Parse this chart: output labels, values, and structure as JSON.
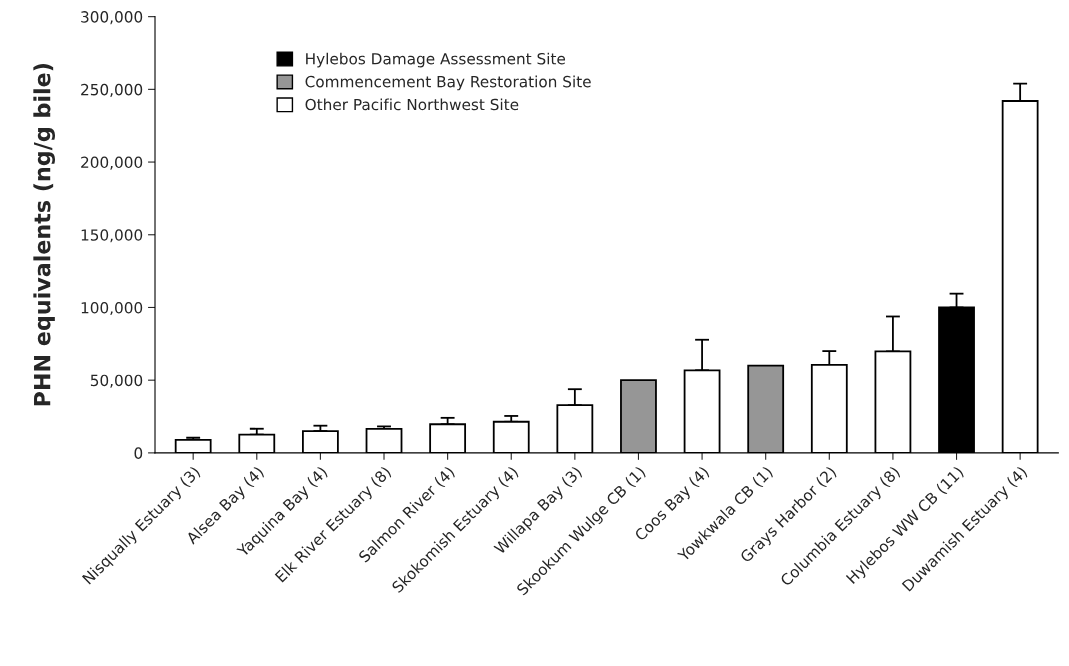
{
  "chart_data": {
    "type": "bar",
    "ylabel": "PHN equivalents (ng/g bile)",
    "categories": [
      "Nisqually Estuary (3)",
      "Alsea Bay (4)",
      "Yaquina Bay (4)",
      "Elk River Estuary (8)",
      "Salmon River (4)",
      "Skokomish Estuary (4)",
      "Willapa Bay (3)",
      "Skookum Wulge CB (1)",
      "Coos Bay (4)",
      "Yowkwala CB (1)",
      "Grays Harbor (2)",
      "Columbia Estuary (8)",
      "Hylebos WW CB (11)",
      "Duwamish Estuary (4)"
    ],
    "series": [
      {
        "name": "Hylebos Damage Assessment Site",
        "color": "#000000",
        "values": [
          null,
          null,
          null,
          null,
          null,
          null,
          null,
          null,
          null,
          null,
          null,
          null,
          100000,
          null
        ],
        "errors": [
          null,
          null,
          null,
          null,
          null,
          null,
          null,
          null,
          null,
          null,
          null,
          null,
          9500,
          null
        ]
      },
      {
        "name": "Commencement Bay Restoration Site",
        "color": "#969696",
        "values": [
          null,
          null,
          null,
          null,
          null,
          null,
          null,
          50000,
          null,
          60000,
          null,
          null,
          null,
          null
        ]
      },
      {
        "name": "Other Pacific Northwest Site",
        "color": "#ffffff",
        "values": [
          8900,
          12600,
          15000,
          16500,
          19700,
          21400,
          32800,
          null,
          56800,
          null,
          60500,
          69800,
          null,
          242000
        ],
        "errors": [
          1500,
          4000,
          3700,
          1700,
          4400,
          4000,
          11000,
          null,
          21000,
          null,
          9500,
          24000,
          null,
          12000
        ]
      }
    ],
    "ylim": [
      0,
      300000
    ],
    "yticks": [
      {
        "value": 0,
        "label": "0"
      },
      {
        "value": 50000,
        "label": "50,000"
      },
      {
        "value": 100000,
        "label": "100,000"
      },
      {
        "value": 150000,
        "label": "150,000"
      },
      {
        "value": 200000,
        "label": "200,000"
      },
      {
        "value": 250000,
        "label": "250,000"
      },
      {
        "value": 300000,
        "label": "300,000"
      }
    ],
    "grid": false,
    "legend": "top left"
  }
}
